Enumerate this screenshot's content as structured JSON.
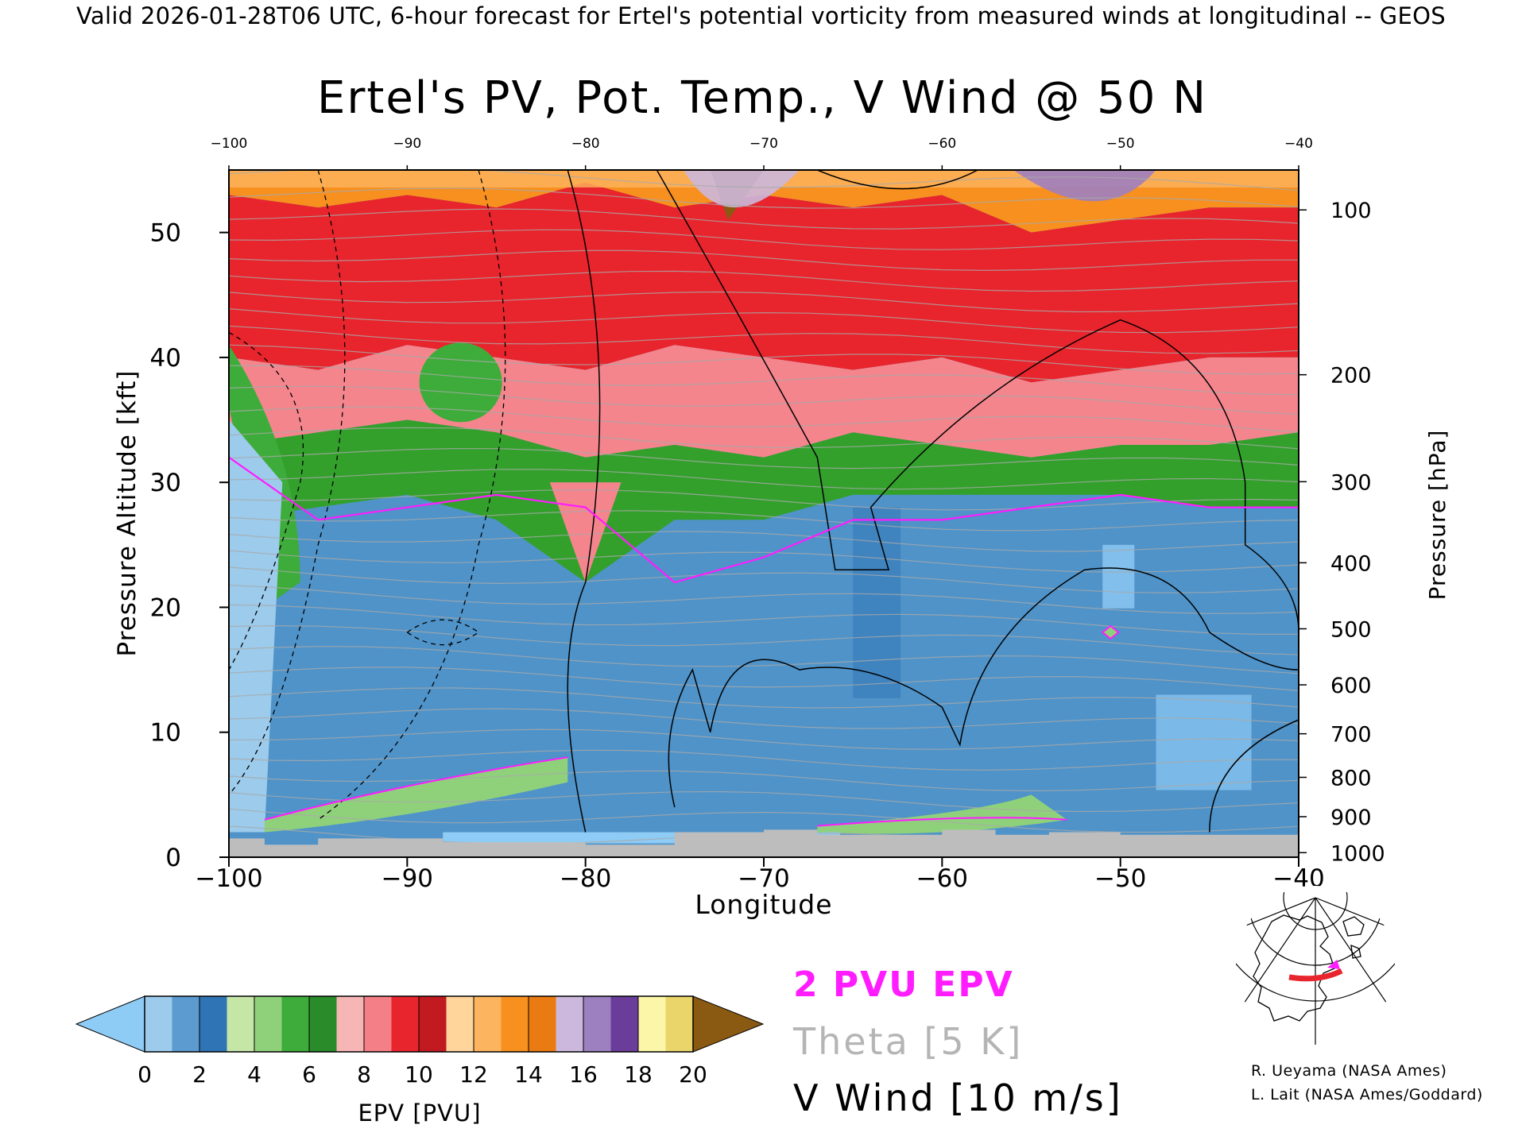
{
  "header": {
    "valid_line": "Valid 2026-01-28T06 UTC, 6-hour forecast for Ertel's potential vorticity from measured winds at longitudinal -- GEOS"
  },
  "chart_data": {
    "type": "heatmap",
    "title": "Ertel's PV, Pot. Temp., V Wind @ 50 N",
    "xlabel": "Longitude",
    "ylabel": "Pressure Altitude [kft]",
    "y2label": "Pressure [hPa]",
    "xlim": [
      -100,
      -40
    ],
    "ylim": [
      0,
      55
    ],
    "x_ticks": [
      -100,
      -90,
      -80,
      -70,
      -60,
      -50,
      -40
    ],
    "x_tick_labels": [
      "−100",
      "−90",
      "−80",
      "−70",
      "−60",
      "−50",
      "−40"
    ],
    "top_tick_labels": [
      "−100",
      "−90",
      "−80",
      "−70",
      "−60",
      "−50",
      "−40"
    ],
    "y_ticks": [
      0,
      10,
      20,
      30,
      40,
      50
    ],
    "y_tick_labels": [
      "0",
      "10",
      "20",
      "30",
      "40",
      "50"
    ],
    "pressure_ticks": [
      {
        "hpa": 100,
        "label": "100"
      },
      {
        "hpa": 200,
        "label": "200"
      },
      {
        "hpa": 300,
        "label": "300"
      },
      {
        "hpa": 400,
        "label": "400"
      },
      {
        "hpa": 500,
        "label": "500"
      },
      {
        "hpa": 600,
        "label": "600"
      },
      {
        "hpa": 700,
        "label": "700"
      },
      {
        "hpa": 800,
        "label": "800"
      },
      {
        "hpa": 900,
        "label": "900"
      },
      {
        "hpa": 1000,
        "label": "1000"
      }
    ],
    "epv_layers_kft": [
      {
        "name": "orange-top",
        "color": "#f7901e",
        "bottom": [
          53,
          52,
          53,
          52,
          54,
          52,
          53,
          52,
          53,
          50,
          51,
          52,
          52
        ]
      },
      {
        "name": "red",
        "color": "#e8242c",
        "bottom": [
          40,
          39,
          41,
          40,
          39,
          41,
          40,
          39,
          40,
          38,
          39,
          40,
          40
        ]
      },
      {
        "name": "pink",
        "color": "#f4858d",
        "bottom": [
          33,
          34,
          35,
          34,
          32,
          33,
          32,
          34,
          33,
          32,
          33,
          33,
          34
        ]
      },
      {
        "name": "green",
        "color": "#33a02c",
        "bottom": [
          27,
          28,
          29,
          27,
          22,
          27,
          27,
          29,
          29,
          29,
          29,
          28,
          28
        ]
      },
      {
        "name": "blue",
        "color": "#4f93c9",
        "bottom": [
          1,
          1,
          1,
          1,
          1,
          1,
          1,
          1,
          1,
          1,
          1,
          1,
          1
        ]
      }
    ],
    "epv_layer_x": [
      -100,
      -95,
      -90,
      -85,
      -80,
      -75,
      -70,
      -65,
      -60,
      -55,
      -50,
      -45,
      -40
    ],
    "contour_2pvu_kft": [
      32,
      27,
      28,
      29,
      28,
      22,
      24,
      27,
      27,
      28,
      29,
      28,
      28
    ],
    "theta_label": "Theta [5 K]",
    "vwind_label": "V Wind [10 m/s]",
    "epv_label": "2 PVU EPV",
    "colorbar": {
      "label": "EPV [PVU]",
      "tick_labels": [
        "0",
        "2",
        "4",
        "6",
        "8",
        "10",
        "12",
        "14",
        "16",
        "18",
        "20"
      ],
      "colors": [
        "#9ccbec",
        "#5b9bd0",
        "#2f74b5",
        "#c6e6a8",
        "#8fd17a",
        "#3eac3a",
        "#2a8b2a",
        "#f7b6b6",
        "#f47f86",
        "#e8242c",
        "#c11a21",
        "#ffd59c",
        "#fdb45f",
        "#f7901e",
        "#ea7a12",
        "#ccb8dc",
        "#9d80bf",
        "#6b3d9a",
        "#fbf6a8",
        "#e9d56a"
      ],
      "under_color": "#8ecbf5",
      "over_color": "#8b5a12"
    },
    "grid": false,
    "legend": "bottom"
  },
  "credits": {
    "line1": "R. Ueyama (NASA Ames)",
    "line2": "L. Lait (NASA Ames/Goddard)"
  },
  "inset": {
    "name": "locator-map"
  }
}
